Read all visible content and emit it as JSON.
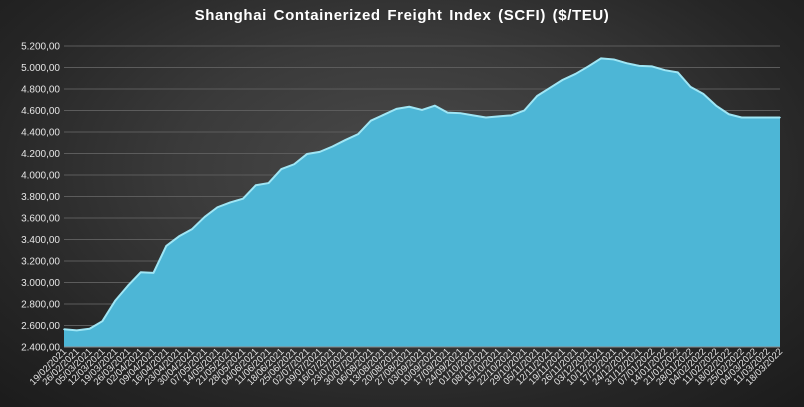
{
  "chart_data": {
    "type": "area",
    "title": "Shanghai Containerized Freight Index  (SCFI) ($/TEU)",
    "xlabel": "",
    "ylabel": "",
    "ylim": [
      2400,
      5200
    ],
    "y_ticks": [
      2400,
      2600,
      2800,
      3000,
      3200,
      3400,
      3600,
      3800,
      4000,
      4200,
      4400,
      4600,
      4800,
      5000,
      5200
    ],
    "y_tick_labels": [
      "2.400,00",
      "2.600,00",
      "2.800,00",
      "3.000,00",
      "3.200,00",
      "3.400,00",
      "3.600,00",
      "3.800,00",
      "4.000,00",
      "4.200,00",
      "4.400,00",
      "4.600,00",
      "4.800,00",
      "5.000,00",
      "5.200,00"
    ],
    "grid": true,
    "colors": {
      "fill": "#4db6d6",
      "line": "#9fe6f5",
      "grid": "#5c5c5c",
      "text": "#e6e6e6"
    },
    "x": [
      "19/02/2021",
      "26/02/2021",
      "05/03/2021",
      "12/03/2021",
      "19/03/2021",
      "26/03/2021",
      "02/04/2021",
      "09/04/2021",
      "16/04/2021",
      "23/04/2021",
      "30/04/2021",
      "07/05/2021",
      "14/05/2021",
      "21/05/2021",
      "28/05/2021",
      "04/06/2021",
      "11/06/2021",
      "18/06/2021",
      "25/06/2021",
      "02/07/2021",
      "09/07/2021",
      "16/07/2021",
      "23/07/2021",
      "30/07/2021",
      "06/08/2021",
      "13/08/2021",
      "20/08/2021",
      "27/08/2021",
      "03/09/2021",
      "10/09/2021",
      "17/09/2021",
      "24/09/2021",
      "01/10/2021",
      "08/10/2021",
      "15/10/2021",
      "22/10/2021",
      "29/10/2021",
      "05/11/2021",
      "12/11/2021",
      "19/11/2021",
      "26/11/2021",
      "03/12/2021",
      "10/12/2021",
      "17/12/2021",
      "24/12/2021",
      "31/12/2021",
      "07/01/2022",
      "14/01/2022",
      "21/01/2022",
      "28/01/2022",
      "04/02/2022",
      "11/02/2022",
      "18/02/2022",
      "25/02/2022",
      "04/03/2022",
      "11/03/2022",
      "18/03/2022"
    ],
    "x_tick_labels": [
      "19/02/2021",
      "26/02/2021",
      "05/03/2021",
      "12/03/2021",
      "19/03/2021",
      "26/03/2021",
      "02/04/2021",
      "09/04/2021",
      "16/04/2021",
      "23/04/2021",
      "30/04/2021",
      "07/05/2021",
      "14/05/2021",
      "21/05/2021",
      "28/05/2021",
      "04/06/2021",
      "11/06/2021",
      "18/06/2021",
      "25/06/2021",
      "02/07/2021",
      "09/07/2021",
      "16/07/2021",
      "23/07/2021",
      "30/07/2021",
      "06/08/2021",
      "13/08/2021",
      "20/08/2021",
      "27/08/2021",
      "03/09/2021",
      "10/09/2021",
      "17/09/2021",
      "24/09/2021",
      "01/10/2021",
      "08/10/2021",
      "15/10/2021",
      "22/10/2021",
      "29/10/2021",
      "05/11/2021",
      "12/11/2021",
      "19/11/2021",
      "26/11/2021",
      "03/12/2021",
      "10/12/2021",
      "17/12/2021",
      "24/12/2021",
      "31/12/2021",
      "07/01/2022",
      "14/01/2022",
      "21/01/2022",
      "28/01/2022",
      "04/02/2022",
      "11/02/2022",
      "18/02/2022",
      "25/02/2022",
      "04/03/2022",
      "11/03/2022",
      "18/03/2022"
    ],
    "x_display": [
      [
        "19/02/2021",
        0
      ],
      [
        "26/02/2021",
        0
      ],
      [
        "05/03/2021",
        0
      ],
      [
        "12/03/2021",
        0
      ],
      [
        "19/03/2021",
        0
      ],
      [
        "26/03/2021",
        0
      ],
      [
        "02/04/2021",
        0
      ],
      [
        "09/04/2021",
        0
      ],
      [
        "16/04/2021",
        0
      ],
      [
        "23/04/2021",
        0
      ],
      [
        "30/04/2021",
        0
      ],
      [
        "07/05/2021",
        0
      ],
      [
        "14/05/2021",
        0
      ],
      [
        "21/05/2021",
        0
      ],
      [
        "28/05/2021",
        0
      ],
      [
        "04/06/2021",
        0
      ],
      [
        "11/06/2021",
        0
      ],
      [
        "18/06/2021",
        0
      ],
      [
        "25/06/2021",
        0
      ],
      [
        "02/07/2021",
        0
      ],
      [
        "09/07/2021",
        0
      ],
      [
        "16/07/2021",
        0
      ],
      [
        "23/07/2021",
        0
      ],
      [
        "30/07/2021",
        0
      ],
      [
        "06/08/2021",
        0
      ],
      [
        "13/08/2021",
        0
      ],
      [
        "20/08/2021",
        0
      ],
      [
        "27/08/2021",
        0
      ],
      [
        "03/09/2021",
        0
      ],
      [
        "10/09/2021",
        0
      ],
      [
        "17/09/2021",
        0
      ],
      [
        "24/09/2021",
        0
      ],
      [
        "01/10/2021",
        0
      ],
      [
        "08/10/2021",
        0
      ],
      [
        "15/10/2021",
        0
      ],
      [
        "22/10/2021",
        0
      ],
      [
        "29/10/2021",
        0
      ],
      [
        "05/11/2021",
        0
      ],
      [
        "12/11/2021",
        0
      ],
      [
        "19/11/2021",
        0
      ],
      [
        "26/11/2021",
        0
      ],
      [
        "03/12/2021",
        0
      ],
      [
        "10/12/2021",
        0
      ],
      [
        "17/12/2021",
        0
      ],
      [
        "24/12/2021",
        0
      ],
      [
        "31/12/2021",
        0
      ],
      [
        "07/01/2022",
        0
      ],
      [
        "14/01/2022",
        0
      ],
      [
        "21/01/2022",
        0
      ],
      [
        "28/01/2022",
        0
      ],
      [
        "04/02/2022",
        0
      ],
      [
        "11/02/2022",
        0
      ],
      [
        "18/02/2022",
        0
      ],
      [
        "25/02/2022",
        0
      ],
      [
        "04/03/2022",
        0
      ],
      [
        "11/03/2022",
        0
      ],
      [
        "18/03/2022",
        0
      ]
    ],
    "series": [
      {
        "values": [
          2565,
          2555,
          2570,
          2640,
          2830,
          2970,
          3095,
          3090,
          3340,
          3430,
          3495,
          3610,
          3700,
          3745,
          3780,
          3905,
          3925,
          4055,
          4100,
          4195,
          4215,
          4265,
          4325,
          4380,
          4505,
          4560,
          4615,
          4635,
          4605,
          4645,
          4580,
          4575,
          4555,
          4535,
          4545,
          4555,
          4600,
          4735,
          4810,
          4885,
          4940,
          5010,
          5085,
          5075,
          5040,
          5015,
          5010,
          4975,
          4955,
          4820,
          4755,
          4645,
          4565,
          4535,
          4535,
          4535,
          4535
        ]
      }
    ]
  }
}
